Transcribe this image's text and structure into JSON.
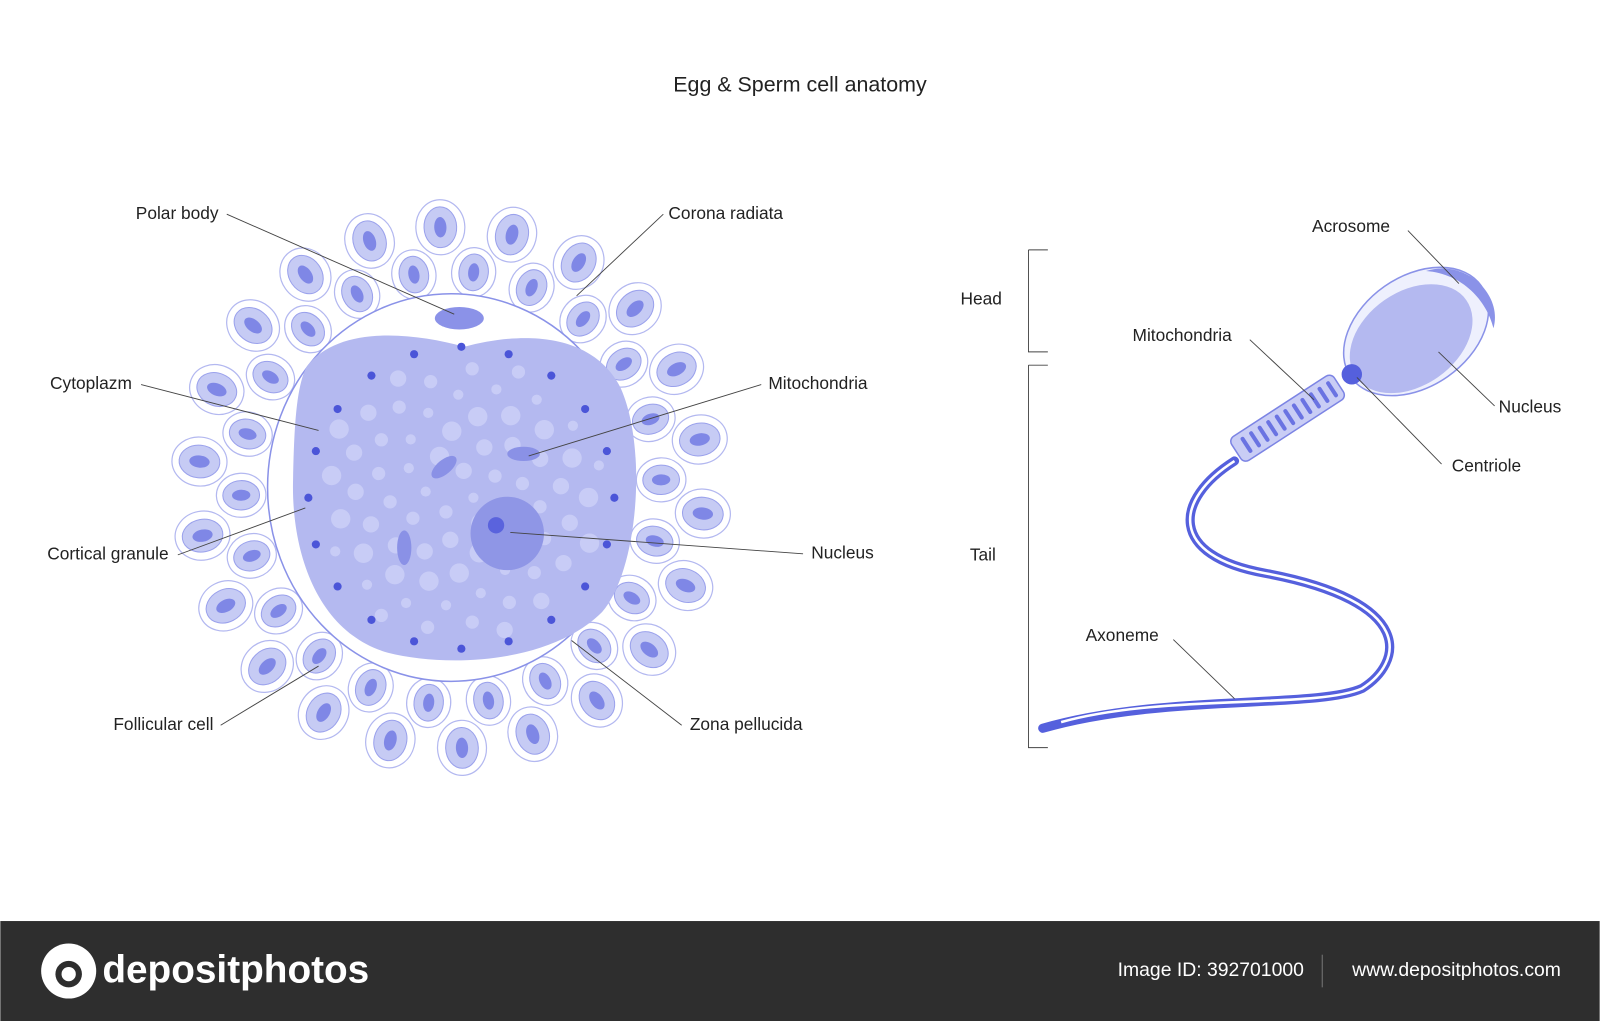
{
  "title": "Egg & Sperm cell anatomy",
  "egg": {
    "labels": {
      "polar_body": "Polar body",
      "corona_radiata": "Corona radiata",
      "cytoplazm": "Cytoplazm",
      "mitochondria": "Mitochondria",
      "cortical_granule": "Cortical granule",
      "nucleus": "Nucleus",
      "follicular_cell": "Follicular cell",
      "zona_pellucida": "Zona pellucida"
    }
  },
  "sperm": {
    "sections": {
      "head": "Head",
      "tail": "Tail"
    },
    "labels": {
      "acrosome": "Acrosome",
      "mitochondria": "Mitochondria",
      "nucleus": "Nucleus",
      "centriole": "Centriole",
      "axoneme": "Axoneme"
    }
  },
  "footer": {
    "brand": "depositphotos",
    "image_id": "Image ID: 392701000",
    "website": "www.depositphotos.com"
  }
}
